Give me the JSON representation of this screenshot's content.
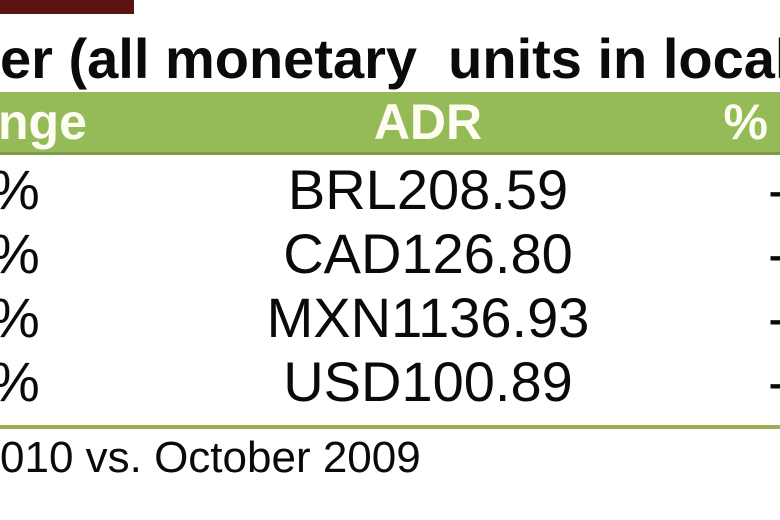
{
  "title": {
    "text": "er (all monetary  units in local"
  },
  "table": {
    "columns": [
      {
        "label": "nge"
      },
      {
        "label": "ADR"
      },
      {
        "label": "%"
      }
    ],
    "rows": [
      {
        "change": "%",
        "adr": "BRL208.59",
        "pct": "-"
      },
      {
        "change": "%",
        "adr": "CAD126.80",
        "pct": "-"
      },
      {
        "change": "%",
        "adr": "MXN1136.93",
        "pct": "-"
      },
      {
        "change": "%",
        "adr": "USD100.89",
        "pct": "-"
      }
    ]
  },
  "footer": {
    "note": "010 vs. October 2009"
  },
  "colors": {
    "header_green": "#95ba58",
    "header_green_border": "#7e9943",
    "separator_green": "#9ab157",
    "header_text": "#fdfdf2",
    "body_text": "#0a0a0a",
    "corner_red": "#5c1312"
  }
}
